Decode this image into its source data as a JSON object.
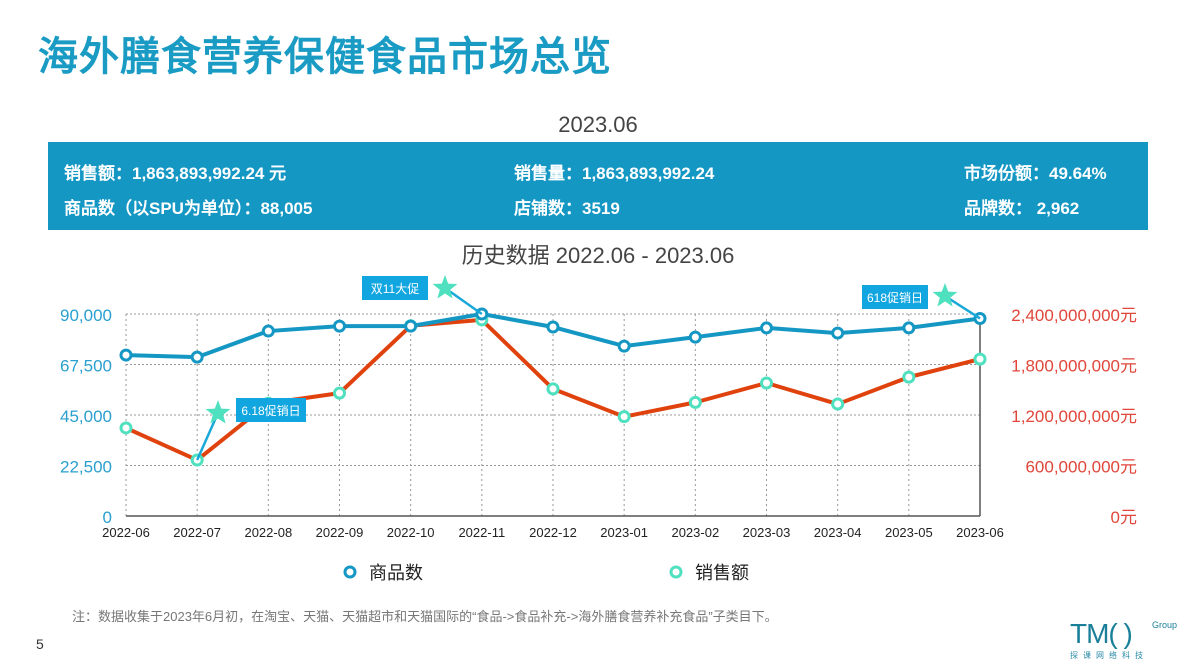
{
  "title": "海外膳食营养保健食品市场总览",
  "period": "2023.06",
  "summary": {
    "sales_amount": "销售额：1,863,893,992.24 元",
    "sales_volume": "销售量：1,863,893,992.24",
    "market_share": "市场份额：49.64%",
    "spu_count": "商品数（以SPU为单位）：88,005",
    "store_count": "店铺数：3519",
    "brand_count": "品牌数： 2,962"
  },
  "chart_data": {
    "type": "line",
    "title": "历史数据 2022.06 - 2023.06",
    "categories": [
      "2022-06",
      "2022-07",
      "2022-08",
      "2022-09",
      "2022-10",
      "2022-11",
      "2022-12",
      "2023-01",
      "2023-02",
      "2023-03",
      "2023-04",
      "2023-05",
      "2023-06"
    ],
    "y_left": {
      "range": [
        0,
        90000
      ],
      "ticks": [
        "0",
        "22,500",
        "45,000",
        "67,500",
        "90,000"
      ],
      "color": "#2a9fd0"
    },
    "y_right": {
      "range": [
        0,
        2400000000
      ],
      "ticks": [
        "0元",
        "600,000,000元",
        "1,200,000,000元",
        "1,800,000,000元",
        "2,400,000,000元"
      ],
      "color": "#e0463a"
    },
    "grid": true,
    "legend_placement": "bottom",
    "series": [
      {
        "name": "商品数",
        "axis": "left",
        "color": "#1597c4",
        "marker": "#1597c4",
        "values": [
          71700,
          70800,
          82400,
          84600,
          84600,
          90000,
          84200,
          75700,
          79700,
          83800,
          81500,
          83800,
          88005
        ]
      },
      {
        "name": "销售额",
        "axis": "right",
        "color": "#e0420e",
        "marker": "#4fe0c0",
        "values": [
          1046000000,
          665000000,
          1340000000,
          1460000000,
          2260000000,
          2330000000,
          1510000000,
          1180000000,
          1350000000,
          1580000000,
          1330000000,
          1650000000,
          1863893992
        ]
      }
    ],
    "annotations": [
      {
        "text": "6.18促销日",
        "category": "2022-07",
        "series": "销售额"
      },
      {
        "text": "双11大促",
        "category": "2022-11",
        "series": "商品数"
      },
      {
        "text": "618促销日",
        "category": "2023-06",
        "series": "商品数"
      }
    ]
  },
  "note": "注：数据收集于2023年6月初，在淘宝、天猫、天猫超市和天猫国际的“食品->食品补充->海外膳食营养补充食品”子类目下。",
  "page_number": "5",
  "logo": {
    "text": "TMO",
    "group": "Group",
    "cn": "探课网络科技"
  }
}
